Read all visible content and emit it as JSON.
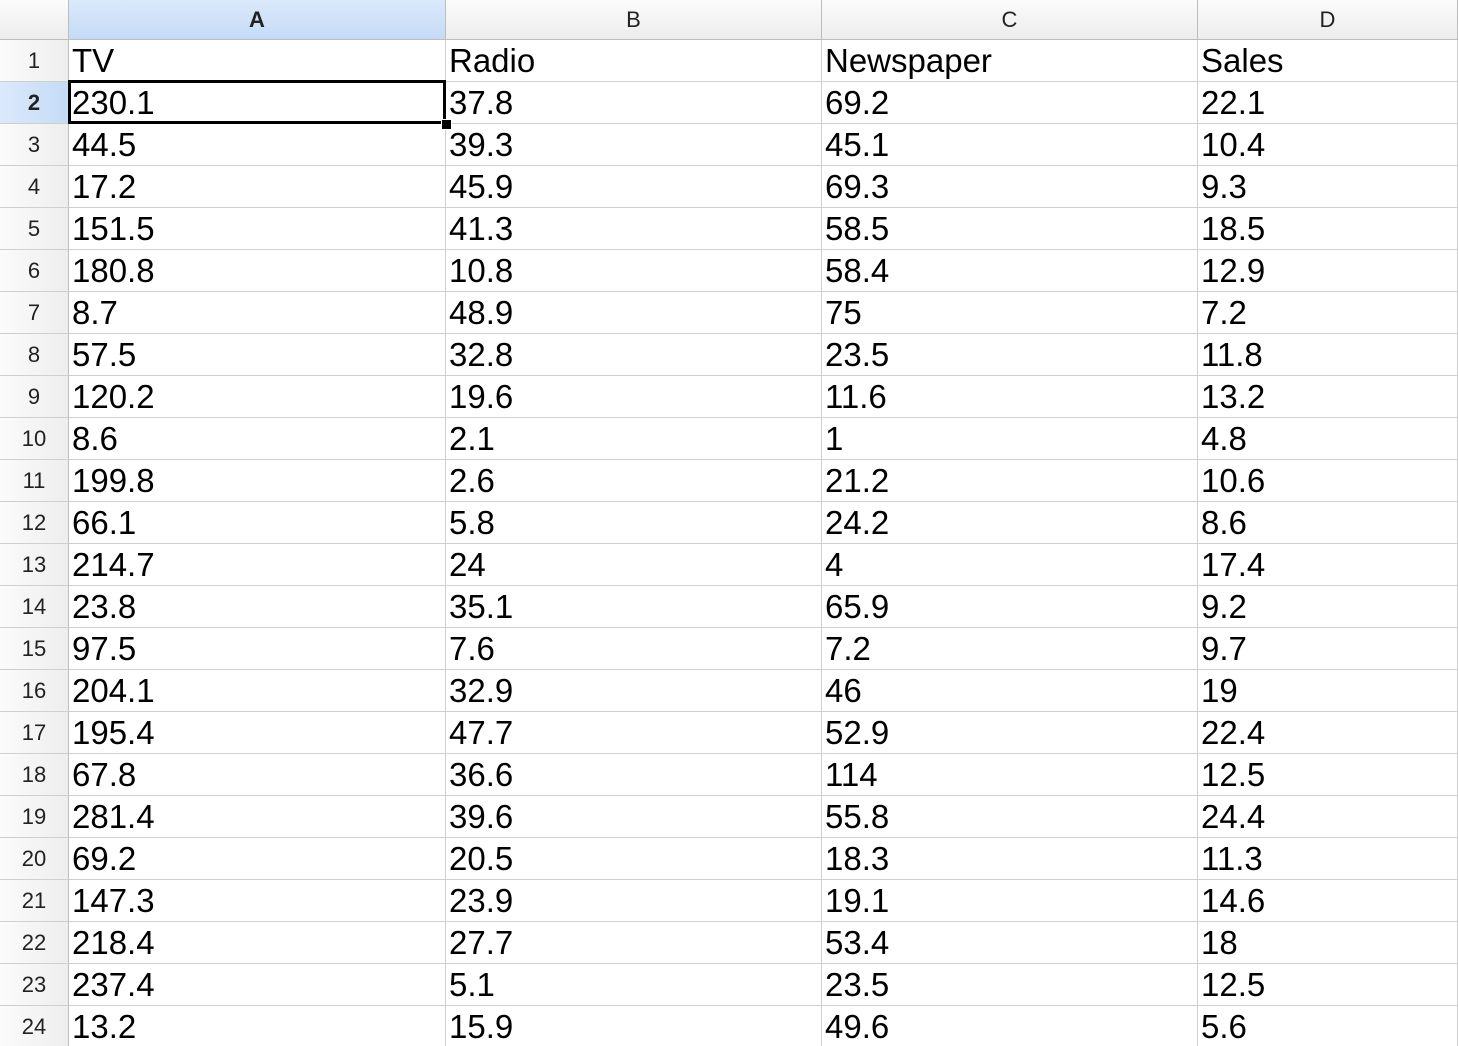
{
  "columns": [
    "A",
    "B",
    "C",
    "D"
  ],
  "selected_column": "A",
  "selected_row": "2",
  "row_numbers": [
    "1",
    "2",
    "3",
    "4",
    "5",
    "6",
    "7",
    "8",
    "9",
    "10",
    "11",
    "12",
    "13",
    "14",
    "15",
    "16",
    "17",
    "18",
    "19",
    "20",
    "21",
    "22",
    "23",
    "24"
  ],
  "rows": [
    [
      "TV",
      "Radio",
      "Newspaper",
      "Sales"
    ],
    [
      "230.1",
      "37.8",
      "69.2",
      "22.1"
    ],
    [
      "44.5",
      "39.3",
      "45.1",
      "10.4"
    ],
    [
      "17.2",
      "45.9",
      "69.3",
      "9.3"
    ],
    [
      "151.5",
      "41.3",
      "58.5",
      "18.5"
    ],
    [
      "180.8",
      "10.8",
      "58.4",
      "12.9"
    ],
    [
      "8.7",
      "48.9",
      "75",
      "7.2"
    ],
    [
      "57.5",
      "32.8",
      "23.5",
      "11.8"
    ],
    [
      "120.2",
      "19.6",
      "11.6",
      "13.2"
    ],
    [
      "8.6",
      "2.1",
      "1",
      "4.8"
    ],
    [
      "199.8",
      "2.6",
      "21.2",
      "10.6"
    ],
    [
      "66.1",
      "5.8",
      "24.2",
      "8.6"
    ],
    [
      "214.7",
      "24",
      "4",
      "17.4"
    ],
    [
      "23.8",
      "35.1",
      "65.9",
      "9.2"
    ],
    [
      "97.5",
      "7.6",
      "7.2",
      "9.7"
    ],
    [
      "204.1",
      "32.9",
      "46",
      "19"
    ],
    [
      "195.4",
      "47.7",
      "52.9",
      "22.4"
    ],
    [
      "67.8",
      "36.6",
      "114",
      "12.5"
    ],
    [
      "281.4",
      "39.6",
      "55.8",
      "24.4"
    ],
    [
      "69.2",
      "20.5",
      "18.3",
      "11.3"
    ],
    [
      "147.3",
      "23.9",
      "19.1",
      "14.6"
    ],
    [
      "218.4",
      "27.7",
      "53.4",
      "18"
    ],
    [
      "237.4",
      "5.1",
      "23.5",
      "12.5"
    ],
    [
      "13.2",
      "15.9",
      "49.6",
      "5.6"
    ]
  ]
}
